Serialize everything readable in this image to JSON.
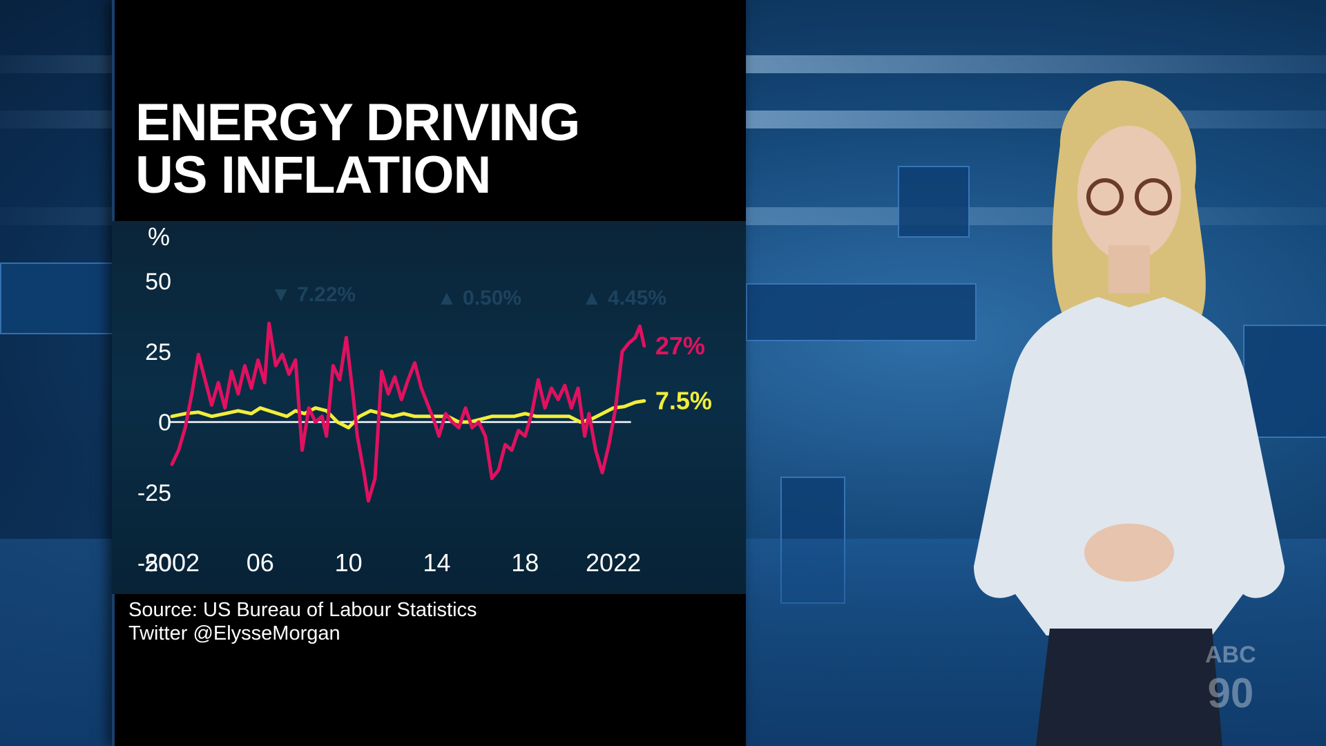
{
  "title": [
    "ENERGY DRIVING",
    "US INFLATION"
  ],
  "source_lines": [
    "Source: US Bureau of Labour Statistics",
    "Twitter @ElysseMorgan"
  ],
  "logo": [
    "ABC",
    "90"
  ],
  "colors": {
    "energy": "#e0115f",
    "headline": "#f2ee3a",
    "zero_line": "#ffffff",
    "panel_bg": "#000000",
    "text": "#ffffff"
  },
  "chart_data": {
    "type": "line",
    "title": "ENERGY DRIVING US INFLATION",
    "ylabel": "%",
    "ylim": [
      -50,
      50
    ],
    "yticks": [
      50,
      25,
      0,
      -25,
      -50
    ],
    "xlim": [
      2002,
      2024
    ],
    "xtick_labels": [
      "2002",
      "06",
      "10",
      "14",
      "18",
      "2022"
    ],
    "xtick_values": [
      2002,
      2006,
      2010,
      2014,
      2018,
      2022
    ],
    "series": [
      {
        "name": "",
        "end_label": "27%",
        "points": [
          [
            2002.0,
            -15
          ],
          [
            2002.3,
            -10
          ],
          [
            2002.6,
            -2
          ],
          [
            2002.9,
            10
          ],
          [
            2003.2,
            24
          ],
          [
            2003.5,
            15
          ],
          [
            2003.8,
            6
          ],
          [
            2004.1,
            14
          ],
          [
            2004.4,
            5
          ],
          [
            2004.7,
            18
          ],
          [
            2005.0,
            10
          ],
          [
            2005.3,
            20
          ],
          [
            2005.6,
            12
          ],
          [
            2005.9,
            22
          ],
          [
            2006.2,
            14
          ],
          [
            2006.4,
            35
          ],
          [
            2006.7,
            20
          ],
          [
            2007.0,
            24
          ],
          [
            2007.3,
            17
          ],
          [
            2007.6,
            22
          ],
          [
            2007.9,
            -10
          ],
          [
            2008.2,
            5
          ],
          [
            2008.5,
            0
          ],
          [
            2008.8,
            2
          ],
          [
            2009.0,
            -5
          ],
          [
            2009.3,
            20
          ],
          [
            2009.6,
            15
          ],
          [
            2009.9,
            30
          ],
          [
            2010.2,
            10
          ],
          [
            2010.4,
            -5
          ],
          [
            2010.7,
            -18
          ],
          [
            2010.9,
            -28
          ],
          [
            2011.2,
            -20
          ],
          [
            2011.5,
            18
          ],
          [
            2011.8,
            10
          ],
          [
            2012.1,
            16
          ],
          [
            2012.4,
            8
          ],
          [
            2012.7,
            15
          ],
          [
            2013.0,
            21
          ],
          [
            2013.3,
            12
          ],
          [
            2013.6,
            6
          ],
          [
            2013.9,
            0
          ],
          [
            2014.1,
            -5
          ],
          [
            2014.4,
            3
          ],
          [
            2014.7,
            0
          ],
          [
            2015.0,
            -2
          ],
          [
            2015.3,
            5
          ],
          [
            2015.6,
            -2
          ],
          [
            2015.9,
            0
          ],
          [
            2016.2,
            -5
          ],
          [
            2016.5,
            -20
          ],
          [
            2016.8,
            -17
          ],
          [
            2017.1,
            -8
          ],
          [
            2017.4,
            -10
          ],
          [
            2017.7,
            -3
          ],
          [
            2018.0,
            -5
          ],
          [
            2018.3,
            3
          ],
          [
            2018.6,
            15
          ],
          [
            2018.9,
            5
          ],
          [
            2019.2,
            12
          ],
          [
            2019.5,
            8
          ],
          [
            2019.8,
            13
          ],
          [
            2020.1,
            5
          ],
          [
            2020.4,
            12
          ],
          [
            2020.7,
            -5
          ],
          [
            2020.9,
            3
          ],
          [
            2021.2,
            -10
          ],
          [
            2021.5,
            -18
          ],
          [
            2021.8,
            -8
          ],
          [
            2022.1,
            5
          ],
          [
            2022.4,
            25
          ],
          [
            2022.7,
            28
          ],
          [
            2023.0,
            30
          ],
          [
            2023.2,
            34
          ],
          [
            2023.4,
            27
          ]
        ]
      },
      {
        "name": "",
        "end_label": "7.5%",
        "points": [
          [
            2002.0,
            2
          ],
          [
            2002.6,
            3
          ],
          [
            2003.2,
            3.5
          ],
          [
            2003.8,
            2
          ],
          [
            2004.4,
            3
          ],
          [
            2005.0,
            4
          ],
          [
            2005.6,
            3
          ],
          [
            2006.0,
            5
          ],
          [
            2006.4,
            4
          ],
          [
            2006.8,
            3
          ],
          [
            2007.2,
            2
          ],
          [
            2007.6,
            4
          ],
          [
            2008.0,
            3
          ],
          [
            2008.5,
            5
          ],
          [
            2009.0,
            4
          ],
          [
            2009.5,
            0
          ],
          [
            2010.0,
            -2
          ],
          [
            2010.5,
            2
          ],
          [
            2011.0,
            4
          ],
          [
            2011.5,
            3
          ],
          [
            2012.0,
            2
          ],
          [
            2012.5,
            3
          ],
          [
            2013.0,
            2
          ],
          [
            2013.5,
            2
          ],
          [
            2014.0,
            2
          ],
          [
            2014.5,
            2
          ],
          [
            2015.0,
            0
          ],
          [
            2015.5,
            0
          ],
          [
            2016.0,
            1
          ],
          [
            2016.5,
            2
          ],
          [
            2017.0,
            2
          ],
          [
            2017.5,
            2
          ],
          [
            2018.0,
            3
          ],
          [
            2018.5,
            2
          ],
          [
            2019.0,
            2
          ],
          [
            2019.5,
            2
          ],
          [
            2020.0,
            2
          ],
          [
            2020.5,
            0
          ],
          [
            2021.0,
            1
          ],
          [
            2021.5,
            3
          ],
          [
            2022.0,
            5
          ],
          [
            2022.5,
            5.5
          ],
          [
            2023.0,
            7
          ],
          [
            2023.4,
            7.5
          ]
        ]
      }
    ],
    "grid": false,
    "zero_line": true
  }
}
